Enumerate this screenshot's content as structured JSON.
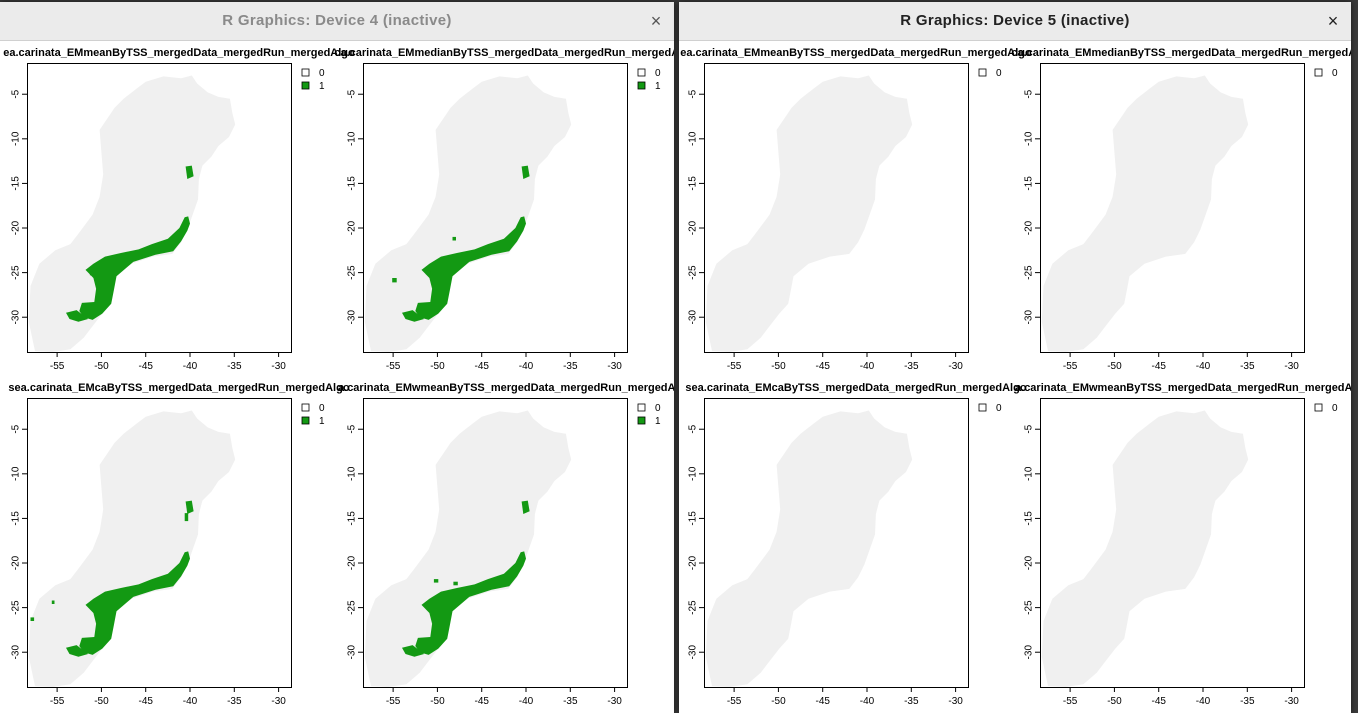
{
  "windows": [
    {
      "title": "R Graphics: Device 4 (inactive)",
      "title_color": "#8a8a8a",
      "close_icon": "×",
      "panels": [
        {
          "title": "ea.carinata_EMmeanByTSS_mergedData_mergedRun_mergedAlgo",
          "legend": [
            "0",
            "1"
          ],
          "variant": "mean"
        },
        {
          "title": "ca.carinata_EMmedianByTSS_mergedData_mergedRun_mergedAlgo",
          "legend": [
            "0",
            "1"
          ],
          "variant": "median"
        },
        {
          "title": "sea.carinata_EMcaByTSS_mergedData_mergedRun_mergedAlgo",
          "legend": [
            "0",
            "1"
          ],
          "variant": "ca"
        },
        {
          "title": "a.carinata_EMwmeanByTSS_mergedData_mergedRun_mergedAlgo",
          "legend": [
            "0",
            "1"
          ],
          "variant": "wmean"
        }
      ]
    },
    {
      "title": "R Graphics: Device 5 (inactive)",
      "title_color": "#222222",
      "close_icon": "×",
      "panels": [
        {
          "title": "ea.carinata_EMmeanByTSS_mergedData_mergedRun_mergedAlgo",
          "legend": [
            "0"
          ],
          "variant": "none"
        },
        {
          "title": "ca.carinata_EMmedianByTSS_mergedData_mergedRun_mergedAlgo",
          "legend": [
            "0"
          ],
          "variant": "none"
        },
        {
          "title": "sea.carinata_EMcaByTSS_mergedData_mergedRun_mergedAlgo",
          "legend": [
            "0"
          ],
          "variant": "none"
        },
        {
          "title": "a.carinata_EMwmeanByTSS_mergedData_mergedRun_mergedAlgo",
          "legend": [
            "0"
          ],
          "variant": "none"
        }
      ]
    }
  ],
  "axes": {
    "x_ticks": [
      "-55",
      "-50",
      "-45",
      "-40",
      "-35",
      "-30"
    ],
    "y_ticks": [
      "-5",
      "-10",
      "-15",
      "-20",
      "-25",
      "-30"
    ]
  },
  "colors": {
    "land": "#f0f0f0",
    "presence": "#139913",
    "axis": "#000000"
  }
}
